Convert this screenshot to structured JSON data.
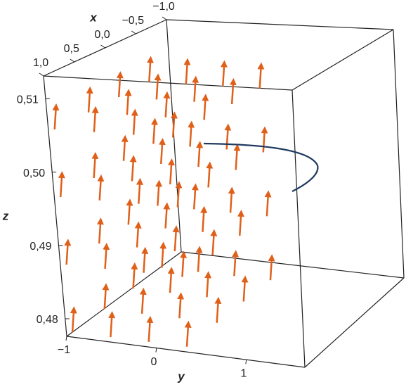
{
  "chart_data": {
    "type": "vector-field-3d",
    "x_label": "x",
    "y_label": "y",
    "z_label": "z",
    "xlim": [
      -1,
      1
    ],
    "xticks": [
      {
        "value": 1.0,
        "label": "1,0"
      },
      {
        "value": 0.5,
        "label": "0,5"
      },
      {
        "value": 0.0,
        "label": "0,0"
      },
      {
        "value": -0.5,
        "label": "−0,5"
      },
      {
        "value": -1.0,
        "label": "−1,0"
      }
    ],
    "ylim": [
      -1,
      1.65
    ],
    "yticks": [
      {
        "value": -1,
        "label": "−1"
      },
      0,
      1
    ],
    "zlim": [
      0.4776,
      0.5131
    ],
    "zticks": [
      {
        "value": 0.48,
        "label": "0,48"
      },
      {
        "value": 0.49,
        "label": "0,49"
      },
      {
        "value": 0.5,
        "label": "0,50"
      },
      {
        "value": 0.51,
        "label": "0,51"
      }
    ],
    "arrow_color": "#e0601a",
    "curve_color": "#1f3a60"
  }
}
